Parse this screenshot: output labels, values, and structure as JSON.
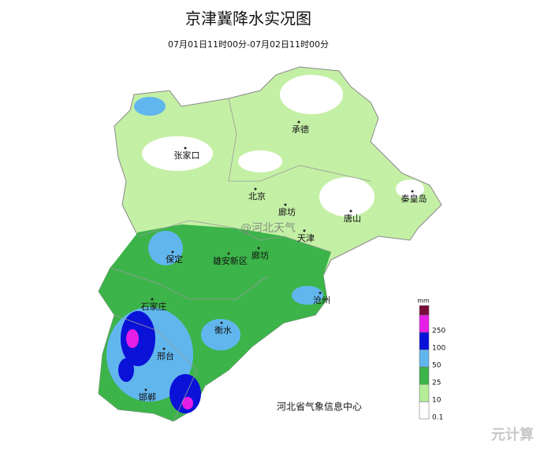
{
  "header": {
    "title": "京津冀降水实况图",
    "subtitle": "07月01日11时00分-07月02日11时00分"
  },
  "cities": [
    "张家口",
    "承德",
    "北京",
    "廊坊",
    "唐山",
    "秦皇岛",
    "天津",
    "保定",
    "雄安新区",
    "廊坊",
    "沧州",
    "石家庄",
    "衡水",
    "邢台",
    "邯郸"
  ],
  "legend": {
    "unit": "mm",
    "items": [
      {
        "label": "0.1",
        "color": "#ffffff"
      },
      {
        "label": "10",
        "color": "#b4ee98"
      },
      {
        "label": "25",
        "color": "#3cb44a"
      },
      {
        "label": "50",
        "color": "#62b6ee"
      },
      {
        "label": "100",
        "color": "#0a12d8"
      },
      {
        "label": "250",
        "color": "#e61ee6"
      }
    ],
    "top_color": "#7a0c3c"
  },
  "source": "河北省气象信息中心",
  "social_watermark": "@河北天气",
  "corner_mark": "元计算"
}
